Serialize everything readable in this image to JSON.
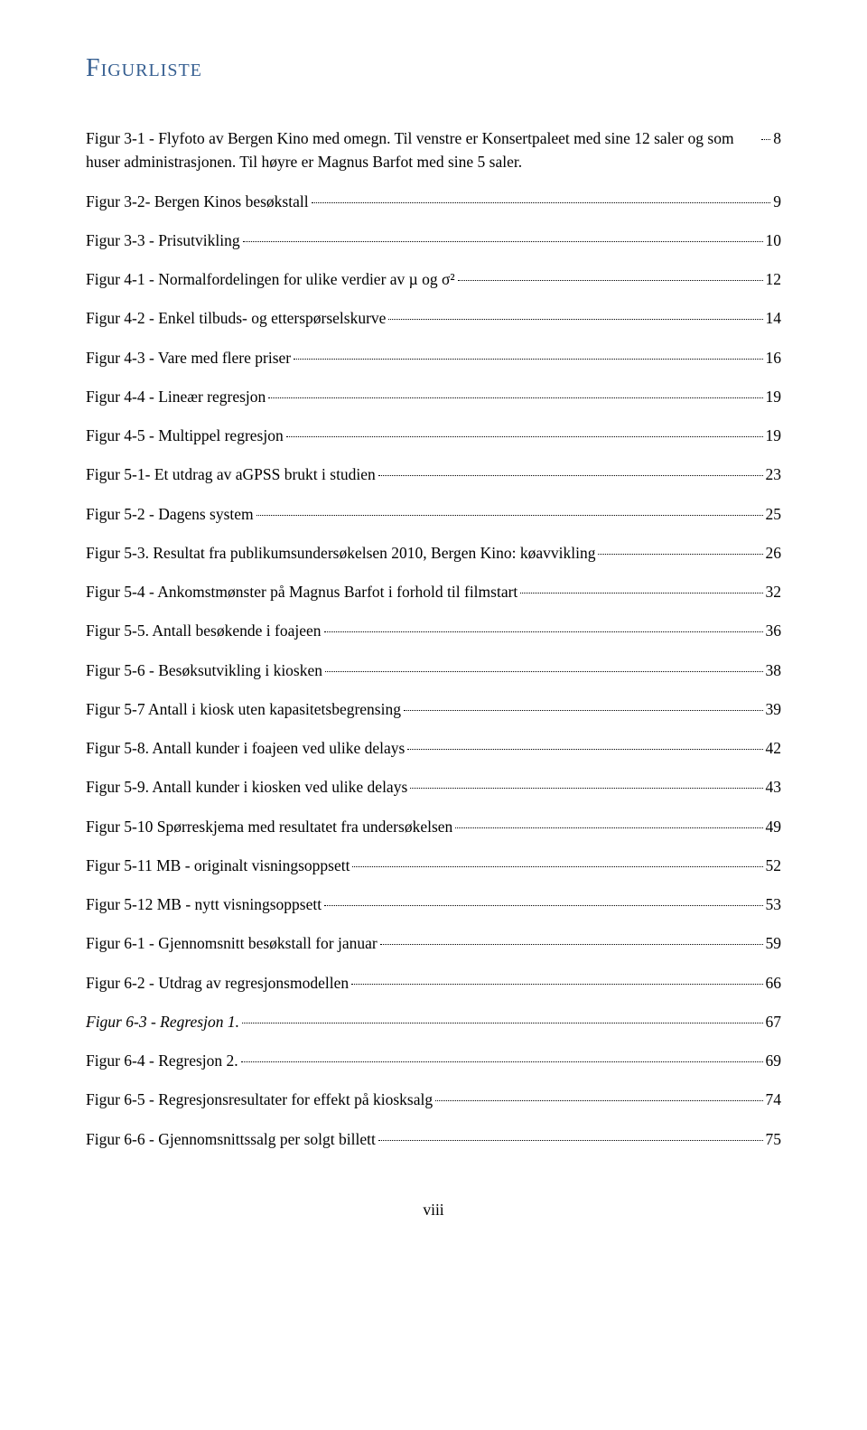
{
  "heading": "Figurliste",
  "pageNumber": "viii",
  "colors": {
    "heading": "#365f91",
    "text": "#000000",
    "background": "#ffffff"
  },
  "entries": [
    {
      "label": "Figur 3-1 - Flyfoto av Bergen Kino med omegn. Til venstre er Konsertpaleet med sine 12 saler og som huser administrasjonen. Til høyre er Magnus Barfot med sine 5 saler.",
      "page": "8",
      "italic": false
    },
    {
      "label": "Figur 3-2- Bergen Kinos besøkstall",
      "page": "9",
      "italic": false
    },
    {
      "label": "Figur 3-3 - Prisutvikling",
      "page": "10",
      "italic": false
    },
    {
      "label": "Figur 4-1 - Normalfordelingen for ulike verdier av µ og σ²",
      "page": "12",
      "italic": false
    },
    {
      "label": "Figur 4-2 - Enkel tilbuds- og etterspørselskurve",
      "page": "14",
      "italic": false
    },
    {
      "label": "Figur 4-3 - Vare med flere priser",
      "page": "16",
      "italic": false
    },
    {
      "label": "Figur 4-4 - Lineær regresjon",
      "page": "19",
      "italic": false
    },
    {
      "label": "Figur 4-5 - Multippel regresjon",
      "page": "19",
      "italic": false
    },
    {
      "label": "Figur 5-1- Et utdrag av aGPSS brukt i studien",
      "page": "23",
      "italic": false
    },
    {
      "label": "Figur 5-2 - Dagens system",
      "page": "25",
      "italic": false
    },
    {
      "label": "Figur 5-3. Resultat fra publikumsundersøkelsen 2010, Bergen Kino: køavvikling",
      "page": "26",
      "italic": false
    },
    {
      "label": "Figur 5-4 - Ankomstmønster på Magnus Barfot i forhold til filmstart",
      "page": "32",
      "italic": false
    },
    {
      "label": "Figur 5-5. Antall besøkende i foajeen",
      "page": "36",
      "italic": false
    },
    {
      "label": "Figur 5-6 - Besøksutvikling i kiosken",
      "page": "38",
      "italic": false
    },
    {
      "label": "Figur 5-7 Antall i kiosk uten kapasitetsbegrensing",
      "page": "39",
      "italic": false
    },
    {
      "label": "Figur 5-8. Antall kunder i foajeen ved ulike delays",
      "page": "42",
      "italic": false
    },
    {
      "label": "Figur 5-9. Antall kunder i kiosken ved ulike delays",
      "page": "43",
      "italic": false
    },
    {
      "label": "Figur 5-10 Spørreskjema med resultatet fra undersøkelsen",
      "page": "49",
      "italic": false
    },
    {
      "label": "Figur 5-11 MB - originalt visningsoppsett",
      "page": "52",
      "italic": false
    },
    {
      "label": "Figur 5-12 MB - nytt visningsoppsett",
      "page": "53",
      "italic": false
    },
    {
      "label": "Figur 6-1 - Gjennomsnitt besøkstall for januar",
      "page": "59",
      "italic": false
    },
    {
      "label": "Figur 6-2 - Utdrag av regresjonsmodellen",
      "page": "66",
      "italic": false
    },
    {
      "label": "Figur 6-3 - Regresjon 1.",
      "page": "67",
      "italic": true
    },
    {
      "label": "Figur 6-4 - Regresjon 2.",
      "page": "69",
      "italic": false
    },
    {
      "label": "Figur 6-5 - Regresjonsresultater for effekt på kiosksalg",
      "page": "74",
      "italic": false
    },
    {
      "label": "Figur 6-6 - Gjennomsnittssalg per solgt billett",
      "page": "75",
      "italic": false
    }
  ]
}
